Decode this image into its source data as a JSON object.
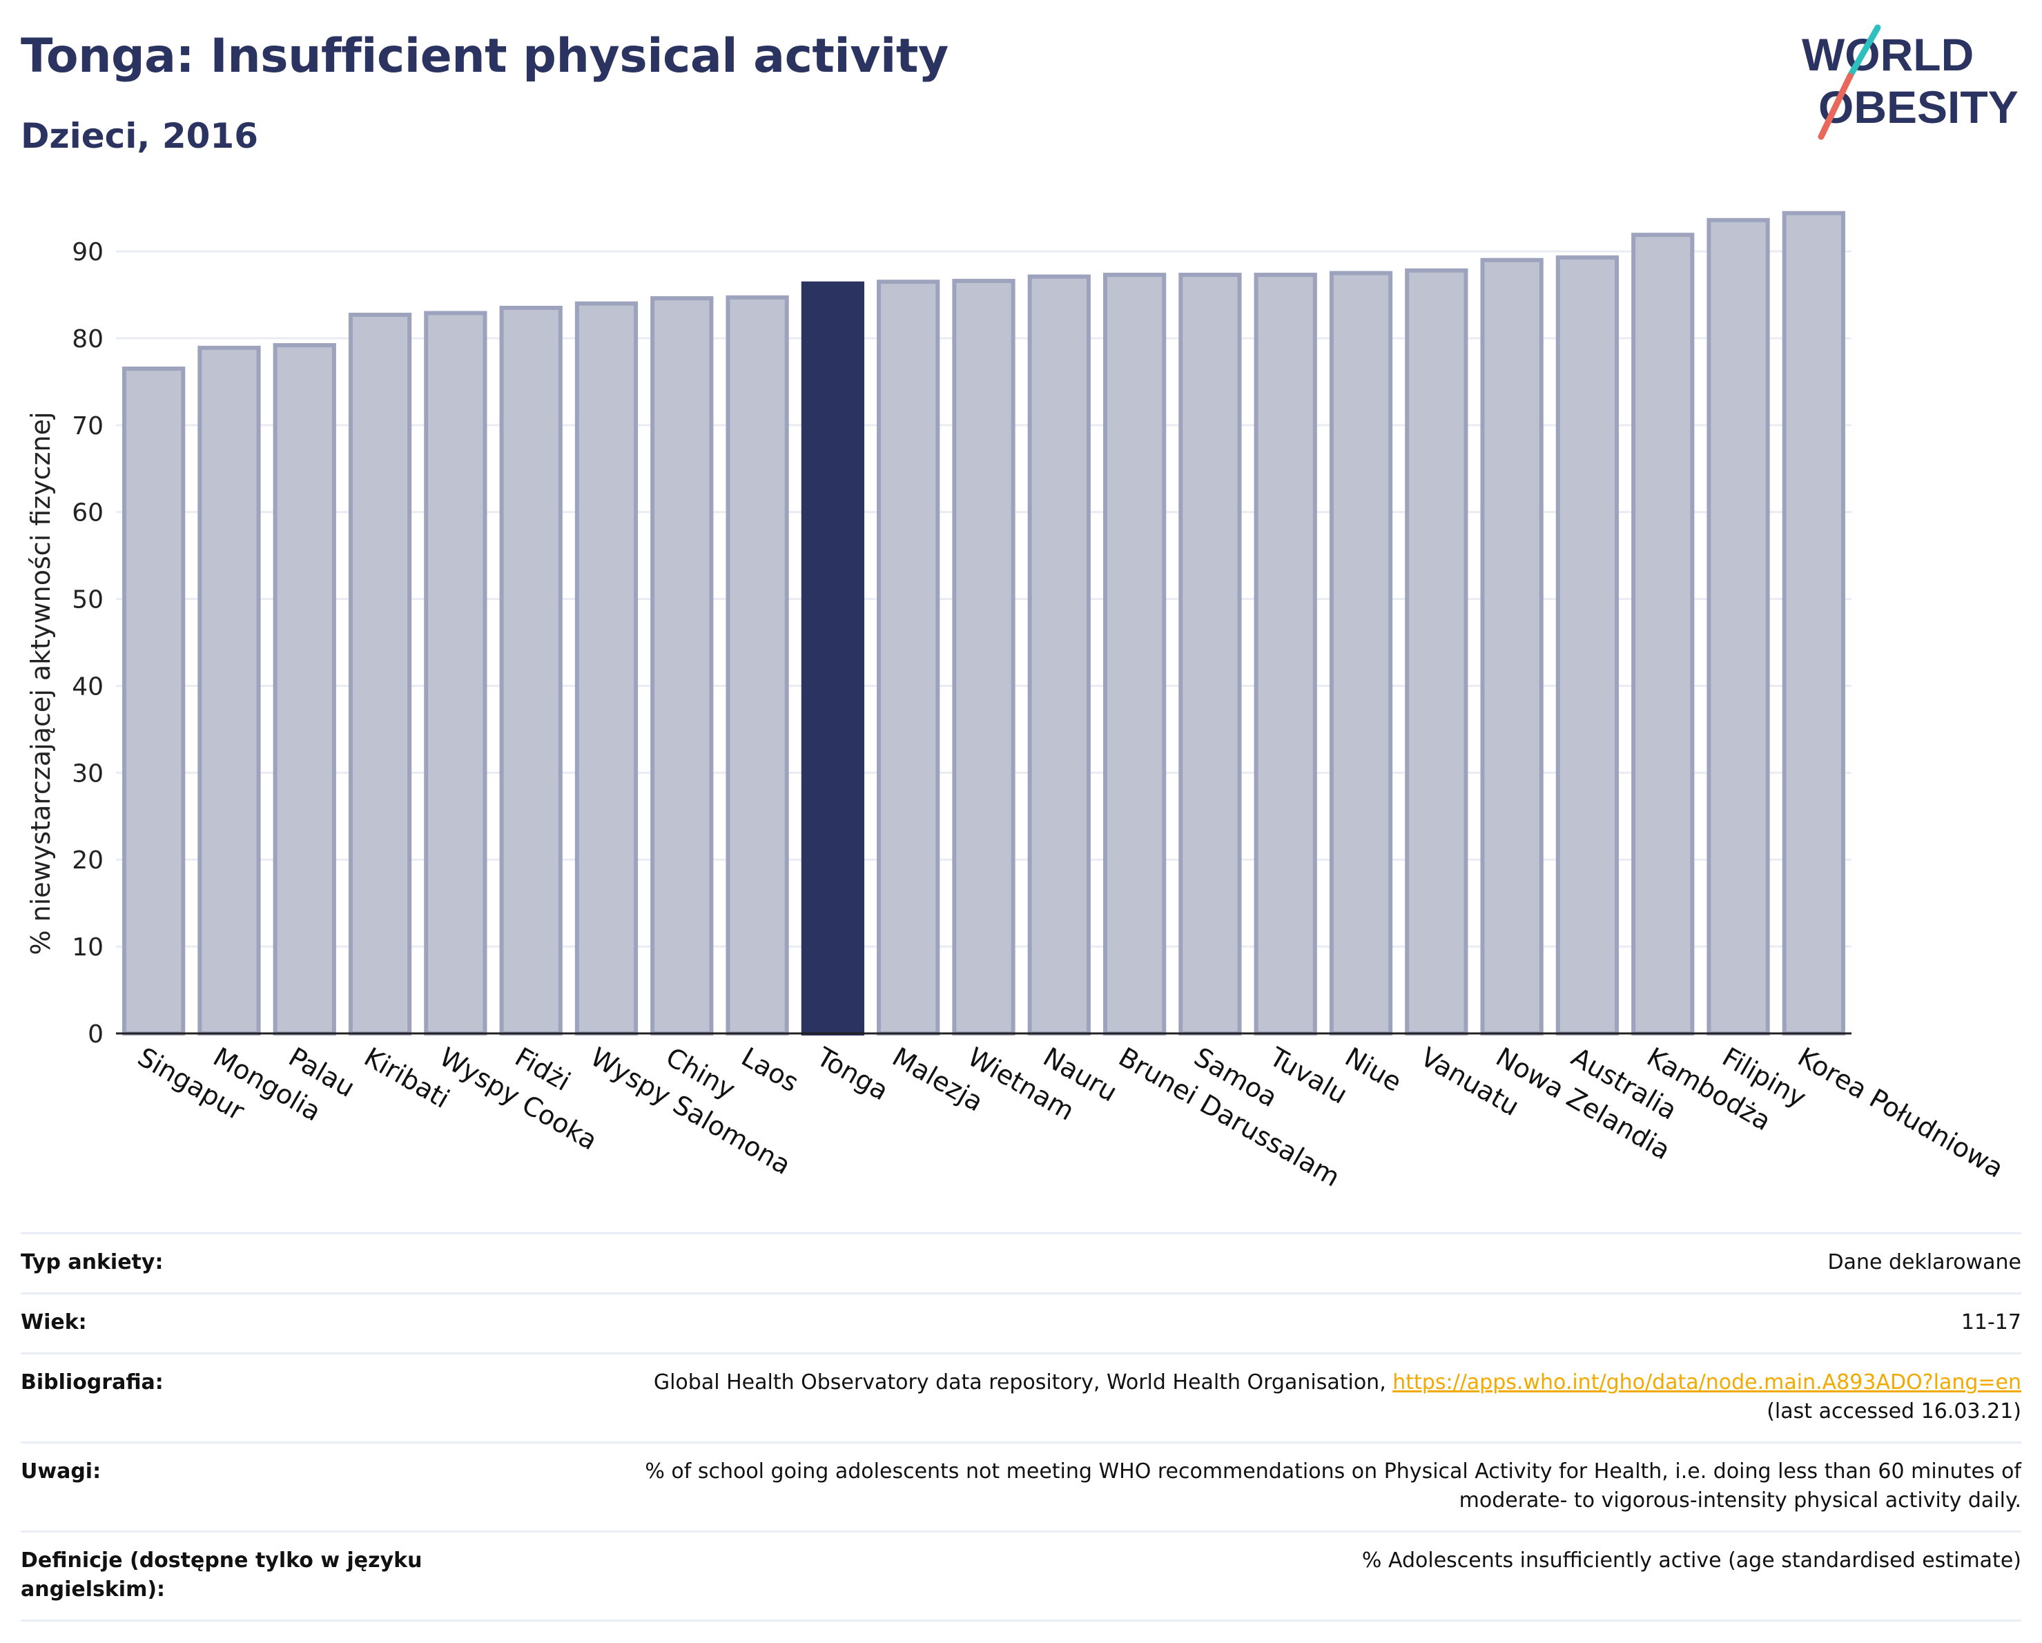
{
  "header": {
    "title": "Tonga: Insufficient physical activity",
    "subtitle": "Dzieci, 2016"
  },
  "logo": {
    "line1": "WORLD",
    "line2": "OBESITY"
  },
  "colors": {
    "highlight": "#2b3360",
    "bar_fill": "#bfc3d1",
    "bar_stroke": "#9da3bd",
    "grid": "#e9ecf3",
    "accent_link": "#f2a900",
    "logo_slash_red": "#e8685b",
    "logo_slash_teal": "#2ebfbf"
  },
  "chart_data": {
    "type": "bar",
    "title": "Tonga: Insufficient physical activity",
    "subtitle": "Dzieci, 2016",
    "ylabel": "% niewystarczającej aktywności fizycznej",
    "xlabel": "",
    "ylim": [
      0,
      97
    ],
    "yticks": [
      0,
      10,
      20,
      30,
      40,
      50,
      60,
      70,
      80,
      90
    ],
    "grid": true,
    "highlight": "Tonga",
    "categories": [
      "Singapur",
      "Mongolia",
      "Palau",
      "Kiribati",
      "Wyspy Cooka",
      "Fidżi",
      "Wyspy Salomona",
      "Chiny",
      "Laos",
      "Tonga",
      "Malezja",
      "Wietnam",
      "Nauru",
      "Brunei Darussalam",
      "Samoa",
      "Tuvalu",
      "Niue",
      "Vanuatu",
      "Nowa Zelandia",
      "Australia",
      "Kambodża",
      "Filipiny",
      "Korea Południowa"
    ],
    "values": [
      76.5,
      78.9,
      79.2,
      82.7,
      82.9,
      83.5,
      84.0,
      84.6,
      84.7,
      86.3,
      86.5,
      86.6,
      87.1,
      87.3,
      87.3,
      87.3,
      87.5,
      87.8,
      89.0,
      89.3,
      91.9,
      93.6,
      94.4
    ]
  },
  "info": {
    "rows": [
      {
        "label": "Typ ankiety:",
        "value": "Dane deklarowane"
      },
      {
        "label": "Wiek:",
        "value": "11-17"
      },
      {
        "label": "Bibliografia:",
        "value": "Global Health Observatory data repository, World Health Organisation, ",
        "link": "https://apps.who.int/gho/data/node.main.A893ADO?lang=en",
        "value2": "(last accessed 16.03.21)"
      },
      {
        "label": "Uwagi:",
        "value": "% of school going adolescents not meeting WHO recommendations on Physical Activity for Health, i.e. doing less than 60 minutes of",
        "value2": "moderate- to vigorous-intensity physical activity daily."
      },
      {
        "label": "Definicje (dostępne tylko w języku angielskim):",
        "value": "% Adolescents insufficiently active (age standardised estimate)"
      }
    ]
  }
}
